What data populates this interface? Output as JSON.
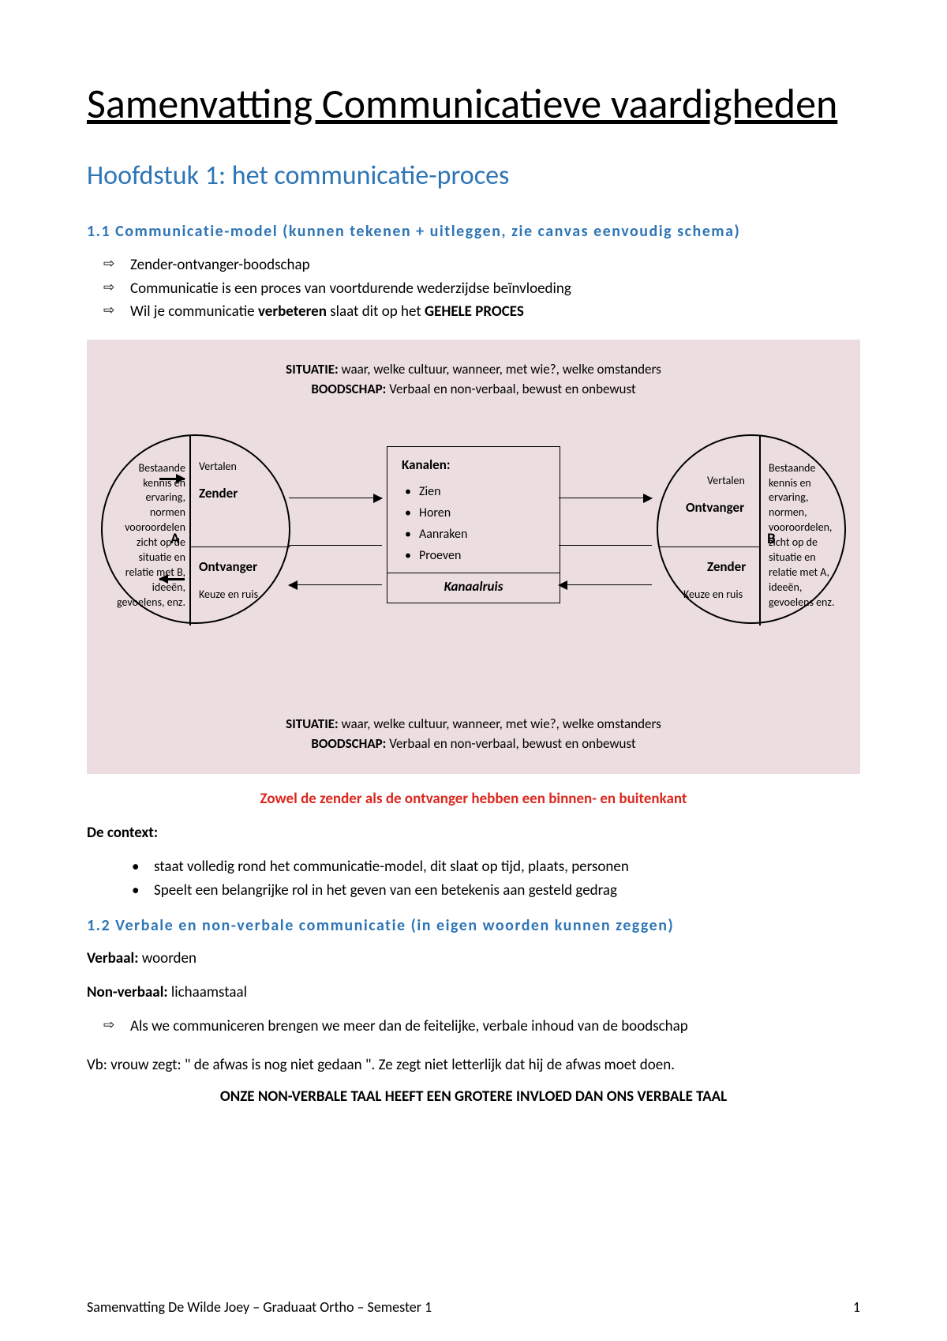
{
  "title": "Samenvatting Communicatieve vaardigheden",
  "chapter": "Hoofdstuk 1: het communicatie-proces",
  "section11": {
    "heading": "1.1 Communicatie-model (kunnen tekenen + uitleggen, zie canvas eenvoudig schema)",
    "items": [
      "Zender-ontvanger-boodschap",
      "Communicatie is een proces van voortdurende wederzijdse beïnvloeding",
      "Wil je communicatie <b>verbeteren</b> slaat dit op het <b>GEHELE PROCES</b>"
    ]
  },
  "diagram": {
    "situatie_label": "SITUATIE:",
    "situatie_text": "waar, welke cultuur, wanneer, met wie?, welke  omstanders",
    "boodschap_label": "BOODSCHAP:",
    "boodschap_text": "Verbaal en non-verbaal, bewust en onbewust",
    "left_outer": "Bestaande kennis en ervaring, normen vooroordelen zicht op de situatie en relatie met B, ideeën, gevoelens, enz.",
    "right_outer": "Bestaande kennis en ervaring, normen, vooroordelen, zicht op de situatie en relatie met A, ideeën, gevoelens enz.",
    "vertalen": "Vertalen",
    "zender": "Zender",
    "ontvanger": "Ontvanger",
    "keuze": "Keuze en ruis",
    "A": "A",
    "B": "B",
    "kanalen_title": "Kanalen:",
    "kanalen": [
      "Zien",
      "Horen",
      "Aanraken",
      "Proeven"
    ],
    "kanaalruis": "Kanaalruis",
    "bg_color": "#ecdee0"
  },
  "red_note": "Zowel de zender als de ontvanger hebben een binnen- en buitenkant",
  "context": {
    "heading": "De context:",
    "items": [
      "staat volledig rond het communicatie-model, dit slaat op tijd, plaats, personen",
      "Speelt een belangrijke rol in het geven van een betekenis aan gesteld gedrag"
    ]
  },
  "section12": {
    "heading": "1.2 Verbale en non-verbale communicatie (in eigen woorden kunnen zeggen)",
    "verbaal_label": "Verbaal:",
    "verbaal_text": "woorden",
    "nonverbaal_label": "Non-verbaal:",
    "nonverbaal_text": "lichaamstaal",
    "arrow_item": "Als we communiceren brengen we meer dan de feitelijke, verbale inhoud van de boodschap",
    "vb": "Vb: vrouw zegt: \" de afwas is nog niet gedaan \". Ze zegt niet letterlijk dat hij de afwas moet doen.",
    "conclusion": "ONZE NON-VERBALE TAAL HEEFT EEN GROTERE INVLOED DAN ONS VERBALE TAAL"
  },
  "footer": {
    "left": "Samenvatting De Wilde Joey – Graduaat Ortho – Semester 1",
    "page": "1"
  }
}
